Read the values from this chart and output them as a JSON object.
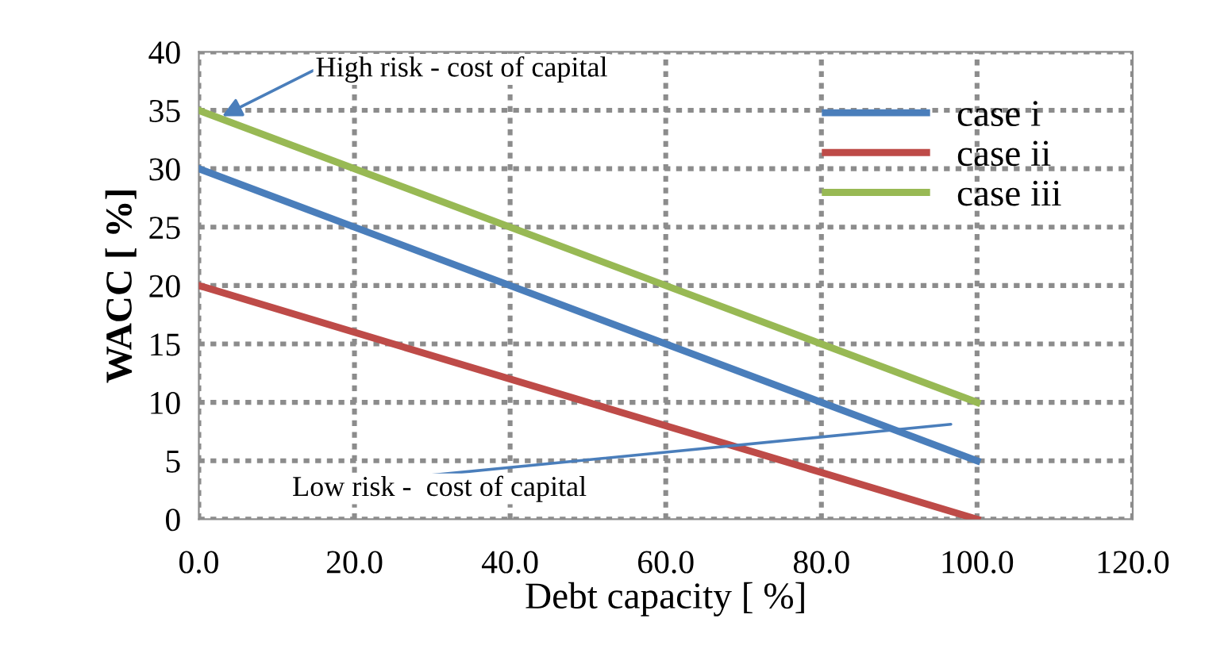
{
  "chart_data": {
    "type": "line",
    "xlabel": "Debt capacity [ %]",
    "ylabel": "WACC [ %]",
    "x": [
      0,
      100
    ],
    "series": [
      {
        "name": "case i",
        "color": "#4a7ebb",
        "values": [
          30,
          5
        ]
      },
      {
        "name": "case ii",
        "color": "#be4b48",
        "values": [
          20,
          0
        ]
      },
      {
        "name": "case iii",
        "color": "#98b954",
        "values": [
          35,
          10
        ]
      }
    ],
    "xlim": [
      0,
      120
    ],
    "xticks": [
      {
        "value": 0,
        "label": "0.0"
      },
      {
        "value": 20,
        "label": "20.0"
      },
      {
        "value": 40,
        "label": "40.0"
      },
      {
        "value": 60,
        "label": "60.0"
      },
      {
        "value": 80,
        "label": "80.0"
      },
      {
        "value": 100,
        "label": "100.0"
      },
      {
        "value": 120,
        "label": "120.0"
      }
    ],
    "ylim": [
      0,
      40
    ],
    "yticks": [
      0,
      5,
      10,
      15,
      20,
      25,
      30,
      35,
      40
    ],
    "annotations": [
      {
        "text": "High risk - cost of capital",
        "x": 3,
        "y": 34.5
      },
      "Low risk -  cost of capital"
    ],
    "grid": true,
    "legend": "top right",
    "marker": "none",
    "line_style": "solid"
  }
}
